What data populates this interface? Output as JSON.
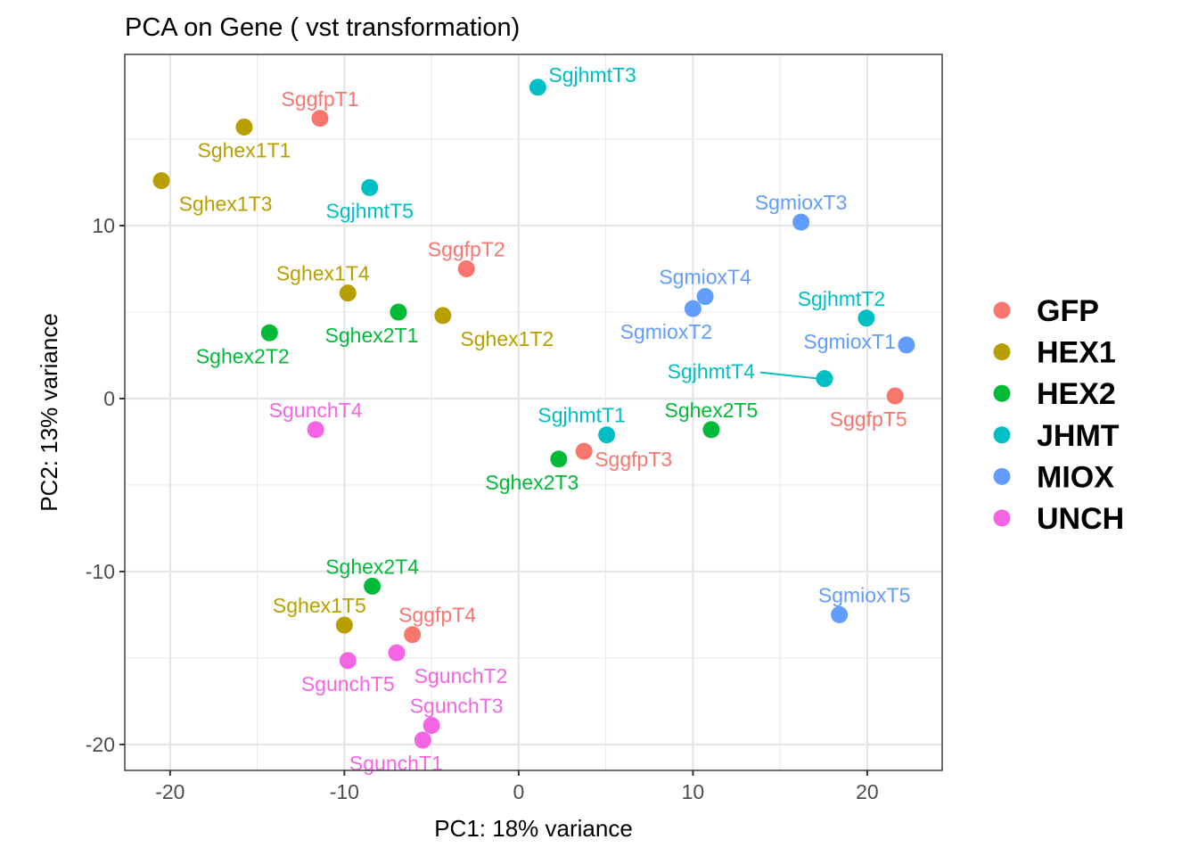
{
  "chart_data": {
    "type": "scatter",
    "title": "PCA on Gene ( vst transformation)",
    "xlabel": "PC1: 18% variance",
    "ylabel": "PC2: 13% variance",
    "xlim": [
      -22.6,
      24.3
    ],
    "ylim": [
      -21.5,
      19.9
    ],
    "xticks": [
      -20,
      -10,
      0,
      10,
      20
    ],
    "yticks": [
      -20,
      -10,
      0,
      10
    ],
    "xtick_labels": [
      "-20",
      "-10",
      "0",
      "10",
      "20"
    ],
    "ytick_labels": [
      "-20",
      "-10",
      "0",
      "10"
    ],
    "grid": true,
    "legend_position": "right",
    "groups": [
      {
        "name": "GFP",
        "color": "#F8766D"
      },
      {
        "name": "HEX1",
        "color": "#B79F00"
      },
      {
        "name": "HEX2",
        "color": "#00BA38"
      },
      {
        "name": "JHMT",
        "color": "#00BFC4"
      },
      {
        "name": "MIOX",
        "color": "#619CFF"
      },
      {
        "name": "UNCH",
        "color": "#F564E3"
      }
    ],
    "points": [
      {
        "label": "SggfpT1",
        "group": "GFP",
        "x": -11.4,
        "y": 16.2,
        "lpos": "top"
      },
      {
        "label": "SggfpT2",
        "group": "GFP",
        "x": -3.0,
        "y": 7.5,
        "lpos": "top"
      },
      {
        "label": "SggfpT3",
        "group": "GFP",
        "x": 3.75,
        "y": -3.05,
        "lpos": "right-below"
      },
      {
        "label": "SggfpT4",
        "group": "GFP",
        "x": -6.1,
        "y": -13.65,
        "lpos": "top-right"
      },
      {
        "label": "SggfpT5",
        "group": "GFP",
        "x": 21.6,
        "y": 0.15,
        "lpos": "below-left"
      },
      {
        "label": "Sghex1T1",
        "group": "HEX1",
        "x": -15.75,
        "y": 15.7,
        "lpos": "below"
      },
      {
        "label": "Sghex1T2",
        "group": "HEX1",
        "x": -4.35,
        "y": 4.8,
        "lpos": "below-right"
      },
      {
        "label": "Sghex1T3",
        "group": "HEX1",
        "x": -20.5,
        "y": 12.6,
        "lpos": "below-right"
      },
      {
        "label": "Sghex1T4",
        "group": "HEX1",
        "x": -9.8,
        "y": 6.1,
        "lpos": "top-left"
      },
      {
        "label": "Sghex1T5",
        "group": "HEX1",
        "x": -10.0,
        "y": -13.1,
        "lpos": "top-left"
      },
      {
        "label": "Sghex2T1",
        "group": "HEX2",
        "x": -6.9,
        "y": 5.0,
        "lpos": "below-left"
      },
      {
        "label": "Sghex2T2",
        "group": "HEX2",
        "x": -14.3,
        "y": 3.8,
        "lpos": "below-left"
      },
      {
        "label": "Sghex2T3",
        "group": "HEX2",
        "x": 2.3,
        "y": -3.5,
        "lpos": "below-left"
      },
      {
        "label": "Sghex2T4",
        "group": "HEX2",
        "x": -8.4,
        "y": -10.85,
        "lpos": "top"
      },
      {
        "label": "Sghex2T5",
        "group": "HEX2",
        "x": 11.05,
        "y": -1.8,
        "lpos": "top"
      },
      {
        "label": "SgjhmtT1",
        "group": "JHMT",
        "x": 5.05,
        "y": -2.1,
        "lpos": "top-left"
      },
      {
        "label": "SgjhmtT2",
        "group": "JHMT",
        "x": 19.95,
        "y": 4.65,
        "lpos": "top-left"
      },
      {
        "label": "SgjhmtT3",
        "group": "JHMT",
        "x": 1.1,
        "y": 18.0,
        "lpos": "right"
      },
      {
        "label": "SgjhmtT4",
        "group": "JHMT",
        "x": 17.55,
        "y": 1.15,
        "lpos": "far-left-line"
      },
      {
        "label": "SgjhmtT5",
        "group": "JHMT",
        "x": -8.55,
        "y": 12.2,
        "lpos": "below"
      },
      {
        "label": "SgmioxT1",
        "group": "MIOX",
        "x": 22.25,
        "y": 3.1,
        "lpos": "left"
      },
      {
        "label": "SgmioxT2",
        "group": "MIOX",
        "x": 10.0,
        "y": 5.2,
        "lpos": "below-left"
      },
      {
        "label": "SgmioxT3",
        "group": "MIOX",
        "x": 16.2,
        "y": 10.2,
        "lpos": "top"
      },
      {
        "label": "SgmioxT4",
        "group": "MIOX",
        "x": 10.7,
        "y": 5.9,
        "lpos": "top"
      },
      {
        "label": "SgmioxT5",
        "group": "MIOX",
        "x": 18.4,
        "y": -12.5,
        "lpos": "top-right"
      },
      {
        "label": "SgunchT1",
        "group": "UNCH",
        "x": -5.5,
        "y": -19.75,
        "lpos": "below-left"
      },
      {
        "label": "SgunchT2",
        "group": "UNCH",
        "x": -7.0,
        "y": -14.7,
        "lpos": "below-right"
      },
      {
        "label": "SgunchT3",
        "group": "UNCH",
        "x": -5.0,
        "y": -18.9,
        "lpos": "top-right"
      },
      {
        "label": "SgunchT4",
        "group": "UNCH",
        "x": -11.65,
        "y": -1.8,
        "lpos": "top"
      },
      {
        "label": "SgunchT5",
        "group": "UNCH",
        "x": -9.8,
        "y": -15.15,
        "lpos": "below"
      }
    ]
  }
}
